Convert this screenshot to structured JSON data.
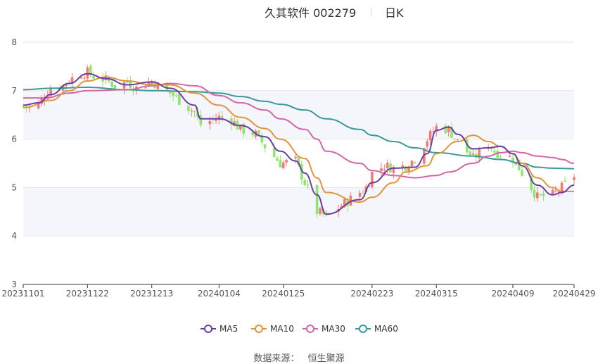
{
  "header": {
    "title": "久其软件 002279",
    "period": "日K"
  },
  "source": {
    "label": "数据来源：",
    "provider": "恒生聚源"
  },
  "colors": {
    "up": "#f47a7a",
    "down": "#8ee66a",
    "ma5": "#6a3fa0",
    "ma10": "#e0953a",
    "ma30": "#d466a8",
    "ma60": "#3a9a9a",
    "band": "#f4f6fb",
    "grid": "#e6e6e6",
    "axis": "#555555"
  },
  "chart_data": {
    "type": "candlestick",
    "ylim": [
      3,
      8
    ],
    "yticks": [
      3,
      4,
      5,
      6,
      7,
      8
    ],
    "date_range": [
      "20231101",
      "20240429"
    ],
    "xtick_labels": [
      "20231101",
      "20231122",
      "20231213",
      "20240104",
      "20240125",
      "20240223",
      "20240315",
      "20240409",
      "20240429"
    ],
    "legend": [
      {
        "name": "MA5",
        "color": "#6a3fa0"
      },
      {
        "name": "MA10",
        "color": "#e0953a"
      },
      {
        "name": "MA30",
        "color": "#d466a8"
      },
      {
        "name": "MA60",
        "color": "#3a9a9a"
      }
    ],
    "grid": true,
    "legend_position": "bottom",
    "close_path": [
      [
        "20231101",
        6.68
      ],
      [
        "20231103",
        6.65
      ],
      [
        "20231106",
        6.72
      ],
      [
        "20231108",
        6.9
      ],
      [
        "20231110",
        7.05
      ],
      [
        "20231114",
        7.1
      ],
      [
        "20231116",
        7.22
      ],
      [
        "20231120",
        7.35
      ],
      [
        "20231122",
        7.38
      ],
      [
        "20231124",
        7.3
      ],
      [
        "20231128",
        7.22
      ],
      [
        "20231201",
        7.1
      ],
      [
        "20231205",
        7.18
      ],
      [
        "20231208",
        7.05
      ],
      [
        "20231213",
        7.2
      ],
      [
        "20231215",
        7.1
      ],
      [
        "20231219",
        6.95
      ],
      [
        "20231222",
        6.8
      ],
      [
        "20231227",
        6.55
      ],
      [
        "20231229",
        6.3
      ],
      [
        "20240104",
        6.45
      ],
      [
        "20240108",
        6.4
      ],
      [
        "20240111",
        6.2
      ],
      [
        "20240116",
        6.1
      ],
      [
        "20240119",
        5.85
      ],
      [
        "20240124",
        5.5
      ],
      [
        "20240129",
        5.55
      ],
      [
        "20240201",
        5.1
      ],
      [
        "20240205",
        4.5
      ],
      [
        "20240208",
        4.4
      ],
      [
        "20240219",
        4.9
      ],
      [
        "20240221",
        5.0
      ],
      [
        "20240223",
        5.3
      ],
      [
        "20240227",
        5.45
      ],
      [
        "20240301",
        5.4
      ],
      [
        "20240305",
        5.45
      ],
      [
        "20240308",
        5.6
      ],
      [
        "20240312",
        6.0
      ],
      [
        "20240315",
        6.25
      ],
      [
        "20240319",
        6.2
      ],
      [
        "20240322",
        5.95
      ],
      [
        "20240327",
        5.6
      ],
      [
        "20240401",
        5.9
      ],
      [
        "20240403",
        5.75
      ],
      [
        "20240409",
        5.6
      ],
      [
        "20240412",
        5.3
      ],
      [
        "20240417",
        4.8
      ],
      [
        "20240422",
        4.85
      ],
      [
        "20240425",
        5.0
      ],
      [
        "20240429",
        5.25
      ]
    ],
    "ma5_path": [
      [
        "20231101",
        6.7
      ],
      [
        "20231106",
        6.75
      ],
      [
        "20231110",
        6.92
      ],
      [
        "20231116",
        7.15
      ],
      [
        "20231122",
        7.35
      ],
      [
        "20231128",
        7.25
      ],
      [
        "20231205",
        7.12
      ],
      [
        "20231213",
        7.18
      ],
      [
        "20231219",
        7.05
      ],
      [
        "20231227",
        6.7
      ],
      [
        "20231229",
        6.42
      ],
      [
        "20240104",
        6.42
      ],
      [
        "20240111",
        6.28
      ],
      [
        "20240119",
        6.05
      ],
      [
        "20240124",
        5.75
      ],
      [
        "20240129",
        5.55
      ],
      [
        "20240201",
        5.3
      ],
      [
        "20240205",
        4.85
      ],
      [
        "20240208",
        4.45
      ],
      [
        "20240219",
        4.75
      ],
      [
        "20240223",
        5.1
      ],
      [
        "20240301",
        5.4
      ],
      [
        "20240308",
        5.42
      ],
      [
        "20240312",
        5.7
      ],
      [
        "20240315",
        6.18
      ],
      [
        "20240319",
        6.25
      ],
      [
        "20240322",
        6.1
      ],
      [
        "20240327",
        5.8
      ],
      [
        "20240401",
        5.82
      ],
      [
        "20240405",
        5.85
      ],
      [
        "20240409",
        5.7
      ],
      [
        "20240412",
        5.45
      ],
      [
        "20240417",
        5.05
      ],
      [
        "20240422",
        4.85
      ],
      [
        "20240425",
        4.9
      ],
      [
        "20240429",
        5.05
      ]
    ],
    "ma10_path": [
      [
        "20231101",
        6.65
      ],
      [
        "20231110",
        6.8
      ],
      [
        "20231116",
        7.0
      ],
      [
        "20231122",
        7.2
      ],
      [
        "20231128",
        7.28
      ],
      [
        "20231205",
        7.2
      ],
      [
        "20231213",
        7.12
      ],
      [
        "20231219",
        7.12
      ],
      [
        "20231227",
        6.95
      ],
      [
        "20240104",
        6.7
      ],
      [
        "20240111",
        6.45
      ],
      [
        "20240119",
        6.22
      ],
      [
        "20240124",
        6.0
      ],
      [
        "20240201",
        5.6
      ],
      [
        "20240205",
        5.2
      ],
      [
        "20240208",
        4.9
      ],
      [
        "20240219",
        4.7
      ],
      [
        "20240223",
        4.8
      ],
      [
        "20240301",
        5.1
      ],
      [
        "20240305",
        5.32
      ],
      [
        "20240312",
        5.45
      ],
      [
        "20240315",
        5.7
      ],
      [
        "20240322",
        5.95
      ],
      [
        "20240327",
        6.08
      ],
      [
        "20240401",
        5.95
      ],
      [
        "20240405",
        5.85
      ],
      [
        "20240409",
        5.7
      ],
      [
        "20240412",
        5.5
      ],
      [
        "20240417",
        5.2
      ],
      [
        "20240422",
        5.0
      ],
      [
        "20240425",
        4.92
      ],
      [
        "20240429",
        4.92
      ]
    ],
    "ma30_path": [
      [
        "20231101",
        6.85
      ],
      [
        "20231108",
        6.85
      ],
      [
        "20231116",
        6.95
      ],
      [
        "20231122",
        7.0
      ],
      [
        "20231205",
        7.02
      ],
      [
        "20231213",
        7.1
      ],
      [
        "20231219",
        7.15
      ],
      [
        "20231227",
        7.1
      ],
      [
        "20240104",
        6.9
      ],
      [
        "20240111",
        6.75
      ],
      [
        "20240119",
        6.6
      ],
      [
        "20240124",
        6.42
      ],
      [
        "20240201",
        6.2
      ],
      [
        "20240205",
        6.0
      ],
      [
        "20240208",
        5.75
      ],
      [
        "20240219",
        5.5
      ],
      [
        "20240223",
        5.35
      ],
      [
        "20240301",
        5.25
      ],
      [
        "20240308",
        5.2
      ],
      [
        "20240315",
        5.25
      ],
      [
        "20240319",
        5.32
      ],
      [
        "20240327",
        5.5
      ],
      [
        "20240401",
        5.65
      ],
      [
        "20240405",
        5.72
      ],
      [
        "20240409",
        5.75
      ],
      [
        "20240412",
        5.72
      ],
      [
        "20240417",
        5.65
      ],
      [
        "20240422",
        5.62
      ],
      [
        "20240425",
        5.58
      ],
      [
        "20240429",
        5.5
      ]
    ],
    "ma60_path": [
      [
        "20231101",
        7.02
      ],
      [
        "20231110",
        7.05
      ],
      [
        "20231122",
        7.07
      ],
      [
        "20231205",
        7.02
      ],
      [
        "20231213",
        7.0
      ],
      [
        "20231227",
        6.98
      ],
      [
        "20240104",
        6.95
      ],
      [
        "20240111",
        6.88
      ],
      [
        "20240119",
        6.78
      ],
      [
        "20240124",
        6.72
      ],
      [
        "20240201",
        6.6
      ],
      [
        "20240208",
        6.42
      ],
      [
        "20240219",
        6.2
      ],
      [
        "20240223",
        6.08
      ],
      [
        "20240301",
        5.95
      ],
      [
        "20240308",
        5.82
      ],
      [
        "20240315",
        5.72
      ],
      [
        "20240327",
        5.65
      ],
      [
        "20240405",
        5.58
      ],
      [
        "20240412",
        5.5
      ],
      [
        "20240417",
        5.42
      ],
      [
        "20240422",
        5.4
      ],
      [
        "20240429",
        5.39
      ]
    ]
  }
}
